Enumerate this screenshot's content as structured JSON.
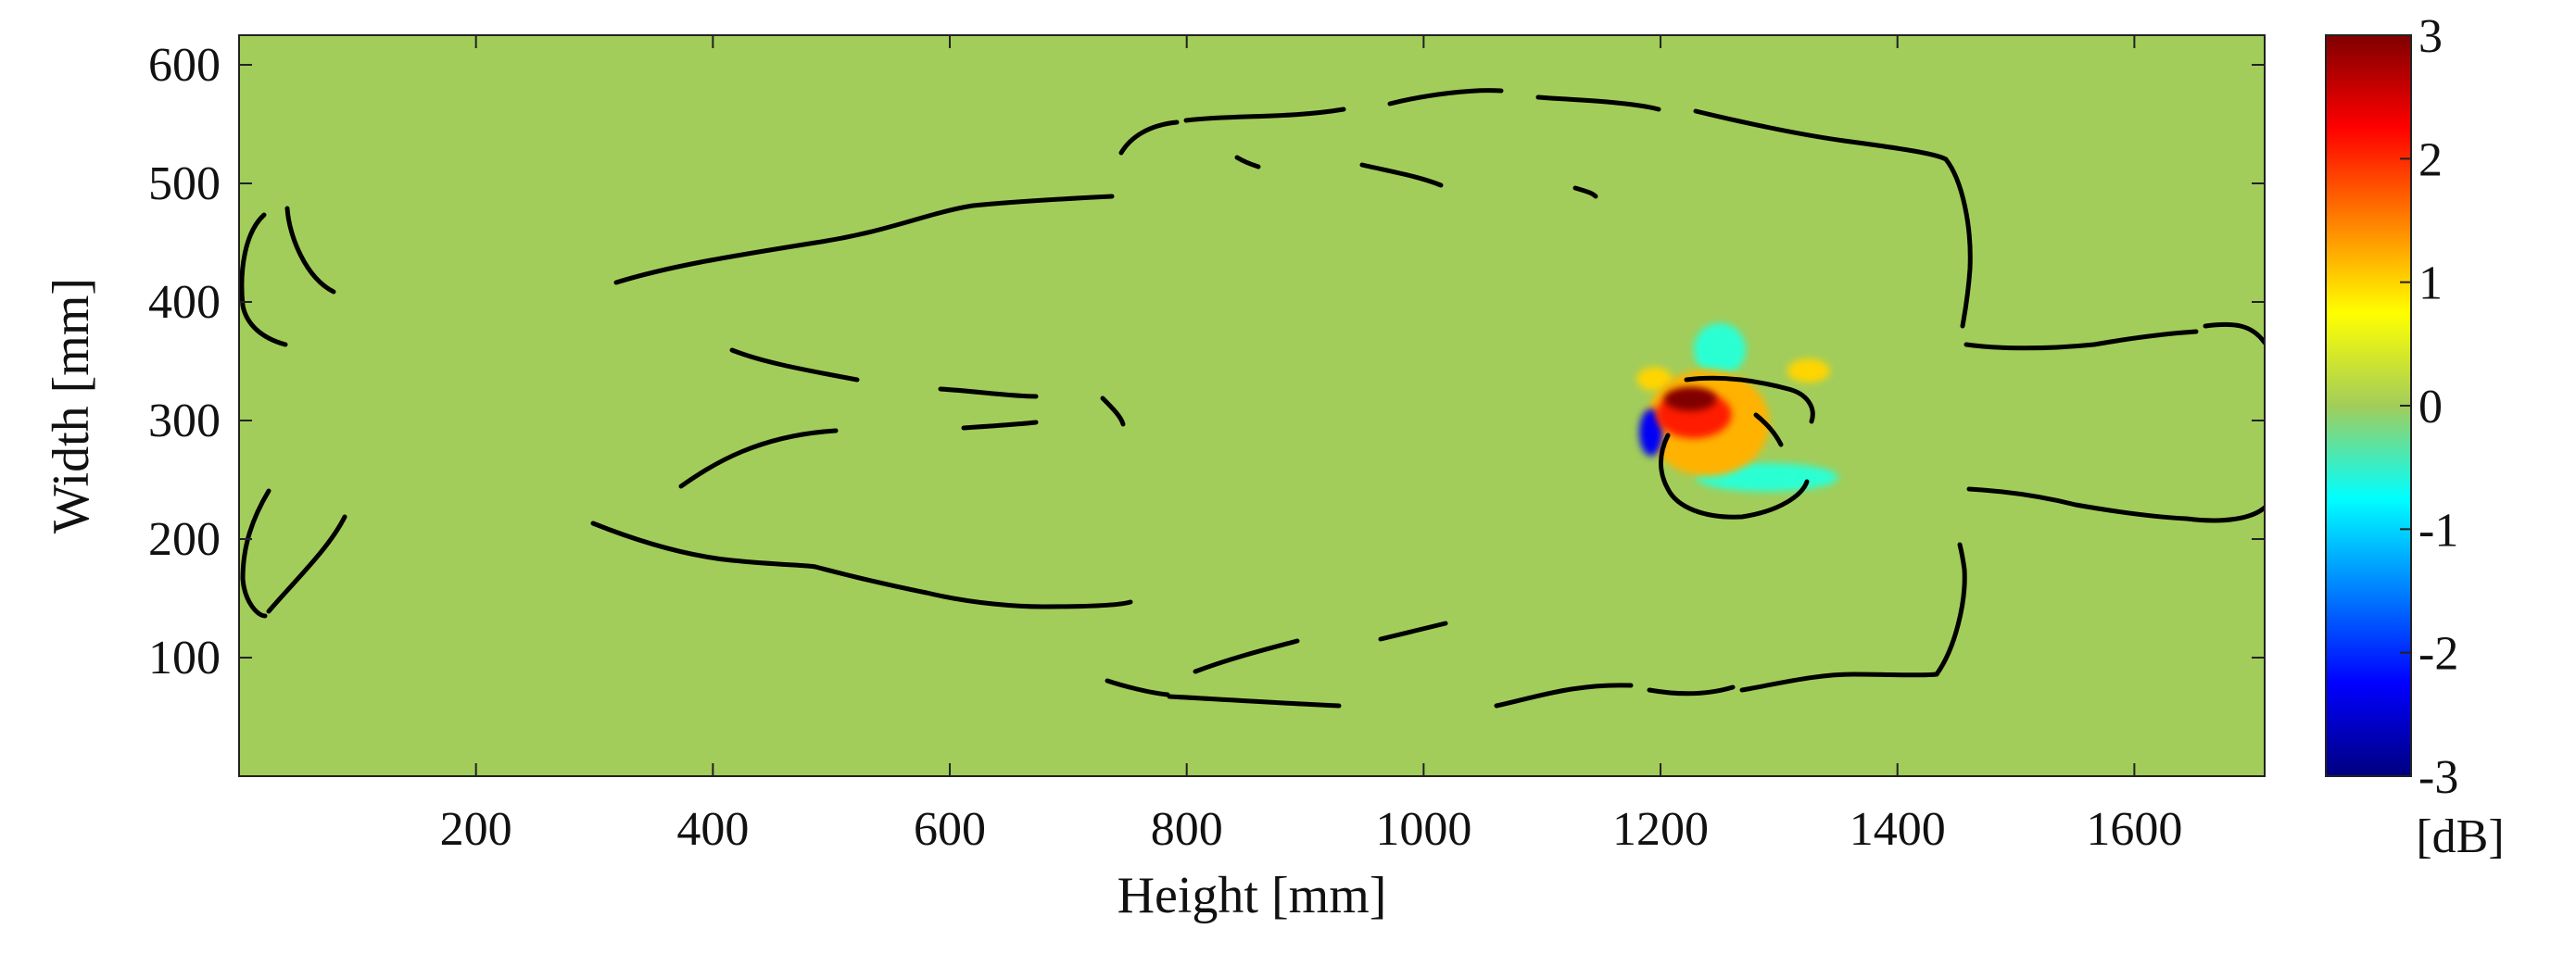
{
  "chart_data": {
    "type": "heatmap",
    "title": "",
    "xlabel": "Height [mm]",
    "ylabel": "Width [mm]",
    "xlim": [
      0,
      1710
    ],
    "ylim": [
      0,
      625
    ],
    "xticks": [
      "200",
      "400",
      "600",
      "800",
      "1000",
      "1200",
      "1400",
      "1600"
    ],
    "yticks": [
      "100",
      "200",
      "300",
      "400",
      "500",
      "600"
    ],
    "background_value": 0,
    "colorbar": {
      "unit": "[dB]",
      "range": [
        -3,
        3
      ],
      "ticks": [
        "3",
        "2",
        "1",
        "0",
        "-1",
        "-2",
        "-3"
      ],
      "colormap": "jet"
    },
    "hotspot": {
      "center": [
        1240,
        305
      ],
      "blobs": [
        {
          "value": -0.5,
          "x": 1250,
          "y": 360,
          "rx": 22,
          "ry": 22
        },
        {
          "value": -0.5,
          "x": 1290,
          "y": 252,
          "rx": 60,
          "ry": 12
        },
        {
          "value": 1.0,
          "x": 1195,
          "y": 335,
          "rx": 15,
          "ry": 10
        },
        {
          "value": 1.0,
          "x": 1325,
          "y": 342,
          "rx": 18,
          "ry": 10
        },
        {
          "value": 1.2,
          "x": 1240,
          "y": 298,
          "rx": 52,
          "ry": 45
        },
        {
          "value": -2.3,
          "x": 1192,
          "y": 290,
          "rx": 10,
          "ry": 20
        },
        {
          "value": 2.1,
          "x": 1228,
          "y": 305,
          "rx": 32,
          "ry": 20
        },
        {
          "value": 3.0,
          "x": 1225,
          "y": 318,
          "rx": 22,
          "ry": 10
        }
      ]
    },
    "outline_color": "#000000",
    "background_color": "#a2cd5a"
  }
}
